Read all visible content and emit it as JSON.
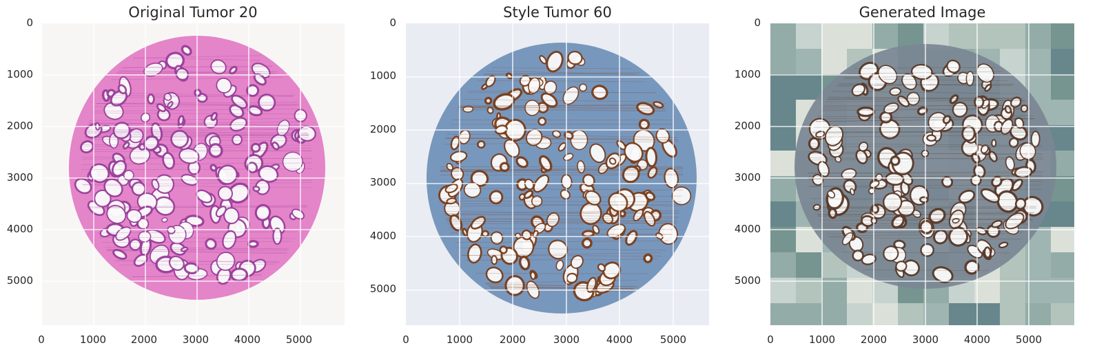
{
  "panels": [
    {
      "title": "Original Tumor 20",
      "xticks": [
        "0",
        "1000",
        "2000",
        "3000",
        "4000",
        "5000"
      ],
      "yticks": [
        "0",
        "1000",
        "2000",
        "3000",
        "4000",
        "5000"
      ],
      "description_colors": {
        "background": "#f8f6f5",
        "tissue": "#e27ac4",
        "gland": "#9a3f9a"
      }
    },
    {
      "title": "Style Tumor 60",
      "xticks": [
        "0",
        "1000",
        "2000",
        "3000",
        "4000",
        "5000"
      ],
      "yticks": [
        "0",
        "1000",
        "2000",
        "3000",
        "4000",
        "5000"
      ],
      "description_colors": {
        "background": "#e9ecf2",
        "tissue": "#6e8fb8",
        "gland": "#7a3e1c"
      }
    },
    {
      "title": "Generated Image",
      "xticks": [
        "0",
        "1000",
        "2000",
        "3000",
        "4000",
        "5000"
      ],
      "yticks": [
        "0",
        "1000",
        "2000",
        "3000",
        "4000",
        "5000"
      ],
      "description_colors": {
        "background": "#b9c6c2",
        "tissue": "#7a8794",
        "gland": "#5a3a2a"
      }
    }
  ]
}
